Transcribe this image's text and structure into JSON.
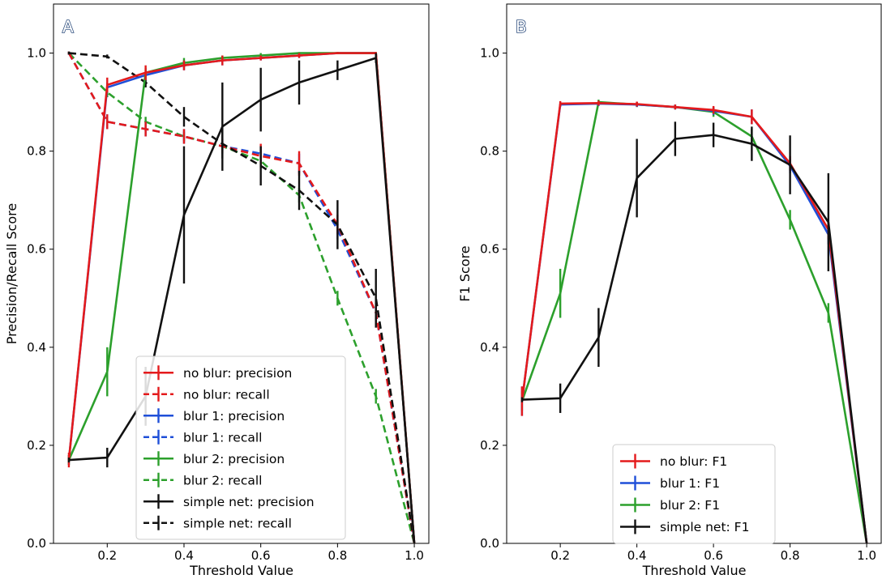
{
  "chart_data": [
    {
      "panel_label": "A",
      "type": "line",
      "xlabel": "Threshold Value",
      "ylabel": "Precision/Recall Score",
      "xlim": [
        0.06,
        1.04
      ],
      "ylim": [
        0.0,
        1.1
      ],
      "x_ticks": [
        0.2,
        0.4,
        0.6,
        0.8,
        1.0
      ],
      "x_tick_labels": [
        "0.2",
        "0.4",
        "0.6",
        "0.8",
        "1.0"
      ],
      "y_ticks": [
        0.0,
        0.2,
        0.4,
        0.6,
        0.8,
        1.0
      ],
      "y_tick_labels": [
        "0.0",
        "0.2",
        "0.4",
        "0.6",
        "0.8",
        "1.0"
      ],
      "grid": false,
      "legend_position": "lower-center",
      "x": [
        0.1,
        0.2,
        0.3,
        0.4,
        0.5,
        0.6,
        0.7,
        0.8,
        0.9,
        1.0
      ],
      "series": [
        {
          "name": "blur 2: recall",
          "color": "#2ca02c",
          "dashed": true,
          "values": [
            1.0,
            0.92,
            0.86,
            0.83,
            0.81,
            0.78,
            0.71,
            0.5,
            0.3,
            0.0
          ],
          "errors": [
            0.003,
            0.01,
            0.01,
            0.01,
            0.01,
            0.01,
            0.015,
            0.015,
            0.015,
            0
          ]
        },
        {
          "name": "blur 1: recall",
          "color": "#1f4fd8",
          "dashed": true,
          "values": [
            1.0,
            0.86,
            0.845,
            0.83,
            0.81,
            0.795,
            0.775,
            0.64,
            0.47,
            0.0
          ],
          "errors": [
            0.003,
            0.015,
            0.015,
            0.015,
            0.015,
            0.015,
            0.02,
            0.02,
            0.02,
            0
          ]
        },
        {
          "name": "no blur: recall",
          "color": "#e41a1c",
          "dashed": true,
          "values": [
            1.0,
            0.86,
            0.845,
            0.83,
            0.81,
            0.79,
            0.775,
            0.65,
            0.47,
            0.0
          ],
          "errors": [
            0.003,
            0.015,
            0.015,
            0.015,
            0.015,
            0.025,
            0.025,
            0.02,
            0.02,
            0
          ]
        },
        {
          "name": "simple net: recall",
          "color": "#111111",
          "dashed": true,
          "values": [
            1.0,
            0.993,
            0.94,
            0.87,
            0.815,
            0.77,
            0.72,
            0.65,
            0.5,
            0.0
          ],
          "errors": [
            0.003,
            0.004,
            0.01,
            0.02,
            0.03,
            0.04,
            0.04,
            0.05,
            0.06,
            0
          ]
        },
        {
          "name": "blur 1: precision",
          "color": "#1f4fd8",
          "dashed": false,
          "values": [
            0.17,
            0.93,
            0.955,
            0.975,
            0.985,
            0.99,
            0.995,
            1.0,
            1.0,
            0.0
          ],
          "errors": [
            0.01,
            0.01,
            0.01,
            0.01,
            0.01,
            0.005,
            0.005,
            0.002,
            0.002,
            0
          ]
        },
        {
          "name": "blur 2: precision",
          "color": "#2ca02c",
          "dashed": false,
          "values": [
            0.17,
            0.35,
            0.96,
            0.98,
            0.99,
            0.995,
            1.0,
            1.0,
            1.0,
            0.0
          ],
          "errors": [
            0.01,
            0.05,
            0.01,
            0.01,
            0.005,
            0.005,
            0.002,
            0.002,
            0.002,
            0
          ]
        },
        {
          "name": "no blur: precision",
          "color": "#e41a1c",
          "dashed": false,
          "values": [
            0.17,
            0.935,
            0.96,
            0.975,
            0.985,
            0.99,
            0.995,
            1.0,
            1.0,
            0.0
          ],
          "errors": [
            0.015,
            0.015,
            0.015,
            0.01,
            0.01,
            0.005,
            0.005,
            0.002,
            0.002,
            0
          ]
        },
        {
          "name": "simple net: precision",
          "color": "#111111",
          "dashed": false,
          "values": [
            0.17,
            0.175,
            0.3,
            0.67,
            0.85,
            0.905,
            0.94,
            0.965,
            0.99,
            0.0
          ],
          "errors": [
            0.005,
            0.02,
            0.06,
            0.14,
            0.09,
            0.065,
            0.045,
            0.02,
            0.01,
            0
          ]
        }
      ],
      "legend": [
        {
          "name": "no blur: precision",
          "color": "#e41a1c",
          "dashed": false
        },
        {
          "name": "no blur: recall",
          "color": "#e41a1c",
          "dashed": true
        },
        {
          "name": "blur 1: precision",
          "color": "#1f4fd8",
          "dashed": false
        },
        {
          "name": "blur 1: recall",
          "color": "#1f4fd8",
          "dashed": true
        },
        {
          "name": "blur 2: precision",
          "color": "#2ca02c",
          "dashed": false
        },
        {
          "name": "blur 2: recall",
          "color": "#2ca02c",
          "dashed": true
        },
        {
          "name": "simple net: precision",
          "color": "#111111",
          "dashed": false
        },
        {
          "name": "simple net: recall",
          "color": "#111111",
          "dashed": true
        }
      ]
    },
    {
      "panel_label": "B",
      "type": "line",
      "xlabel": "Threshold Value",
      "ylabel": "F1 Score",
      "xlim": [
        0.06,
        1.04
      ],
      "ylim": [
        0.0,
        1.1
      ],
      "x_ticks": [
        0.2,
        0.4,
        0.6,
        0.8,
        1.0
      ],
      "x_tick_labels": [
        "0.2",
        "0.4",
        "0.6",
        "0.8",
        "1.0"
      ],
      "y_ticks": [
        0.0,
        0.2,
        0.4,
        0.6,
        0.8,
        1.0
      ],
      "y_tick_labels": [
        "0.0",
        "0.2",
        "0.4",
        "0.6",
        "0.8",
        "1.0"
      ],
      "grid": false,
      "legend_position": "lower-center",
      "x": [
        0.1,
        0.2,
        0.3,
        0.4,
        0.5,
        0.6,
        0.7,
        0.8,
        0.9,
        1.0
      ],
      "series": [
        {
          "name": "blur 2: F1",
          "color": "#2ca02c",
          "dashed": false,
          "values": [
            0.29,
            0.51,
            0.9,
            0.895,
            0.89,
            0.88,
            0.83,
            0.66,
            0.47,
            0.0
          ],
          "errors": [
            0.02,
            0.05,
            0.005,
            0.005,
            0.005,
            0.01,
            0.015,
            0.02,
            0.02,
            0
          ]
        },
        {
          "name": "blur 1: F1",
          "color": "#1f4fd8",
          "dashed": false,
          "values": [
            0.29,
            0.895,
            0.897,
            0.895,
            0.89,
            0.882,
            0.87,
            0.77,
            0.63,
            0.0
          ],
          "errors": [
            0.03,
            0.005,
            0.005,
            0.005,
            0.005,
            0.008,
            0.015,
            0.015,
            0.02,
            0
          ]
        },
        {
          "name": "no blur: F1",
          "color": "#e41a1c",
          "dashed": false,
          "values": [
            0.29,
            0.897,
            0.898,
            0.896,
            0.89,
            0.884,
            0.87,
            0.775,
            0.64,
            0.0
          ],
          "errors": [
            0.03,
            0.005,
            0.005,
            0.005,
            0.005,
            0.008,
            0.015,
            0.015,
            0.02,
            0
          ]
        },
        {
          "name": "simple net: F1",
          "color": "#111111",
          "dashed": false,
          "values": [
            0.293,
            0.296,
            0.42,
            0.745,
            0.825,
            0.833,
            0.815,
            0.772,
            0.655,
            0.0
          ],
          "errors": [
            0.005,
            0.03,
            0.06,
            0.08,
            0.035,
            0.025,
            0.035,
            0.06,
            0.1,
            0
          ]
        }
      ],
      "legend": [
        {
          "name": "no blur: F1",
          "color": "#e41a1c",
          "dashed": false
        },
        {
          "name": "blur 1: F1",
          "color": "#1f4fd8",
          "dashed": false
        },
        {
          "name": "blur 2: F1",
          "color": "#2ca02c",
          "dashed": false
        },
        {
          "name": "simple net: F1",
          "color": "#111111",
          "dashed": false
        }
      ]
    }
  ]
}
